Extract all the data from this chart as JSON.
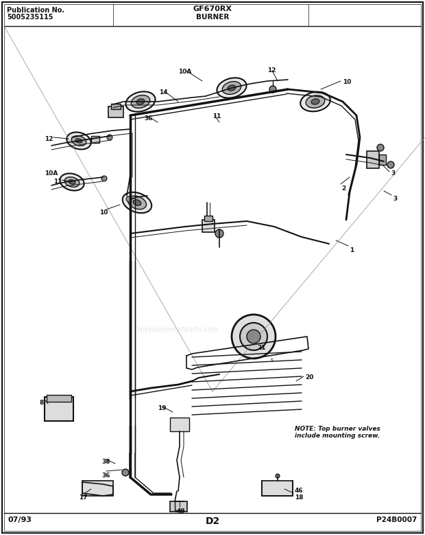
{
  "title_left_line1": "Publication No.",
  "title_left_line2": "5005235115",
  "title_center_top": "GF670RX",
  "title_center_bottom": "BURNER",
  "footer_left": "07/93",
  "footer_center": "D2",
  "footer_right": "P24B0007",
  "note_text": "NOTE: Top burner valves\ninclude mounting screw.",
  "bg_color": "#ffffff",
  "border_color": "#000000",
  "diagram_color": "#111111",
  "figsize": [
    6.2,
    7.79
  ],
  "dpi": 100
}
